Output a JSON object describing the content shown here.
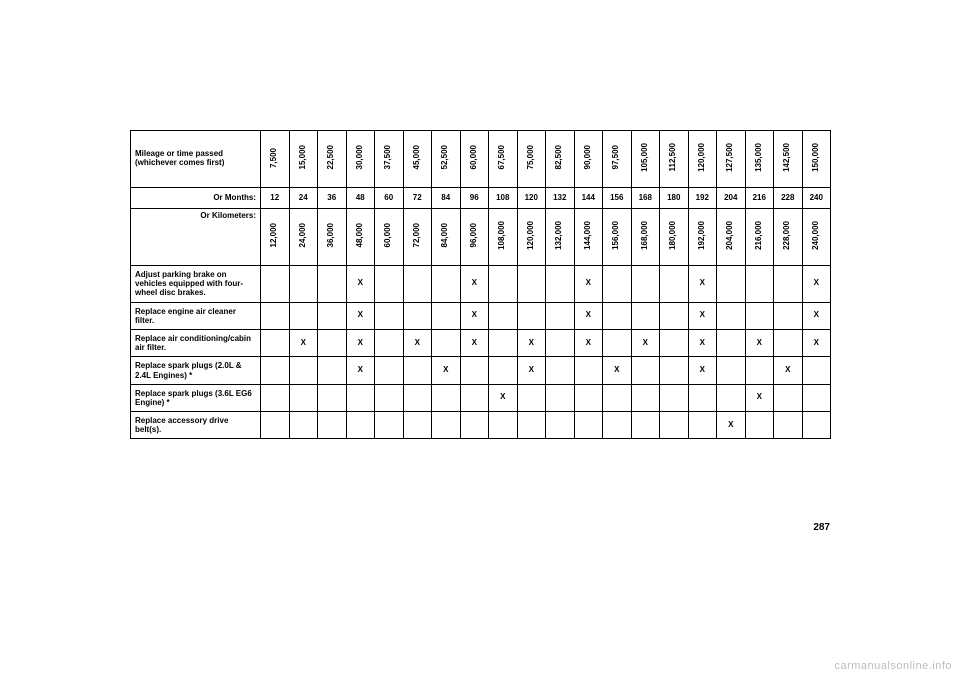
{
  "table": {
    "header_mileage_label": "Mileage or time passed (whichever comes first)",
    "header_months_label": "Or Months:",
    "header_km_label": "Or Kilometers:",
    "mileage_values": [
      "7,500",
      "15,000",
      "22,500",
      "30,000",
      "37,500",
      "45,000",
      "52,500",
      "60,000",
      "67,500",
      "75,000",
      "82,500",
      "90,000",
      "97,500",
      "105,000",
      "112,500",
      "120,000",
      "127,500",
      "135,000",
      "142,500",
      "150,000"
    ],
    "months_values": [
      "12",
      "24",
      "36",
      "48",
      "60",
      "72",
      "84",
      "96",
      "108",
      "120",
      "132",
      "144",
      "156",
      "168",
      "180",
      "192",
      "204",
      "216",
      "228",
      "240"
    ],
    "km_values": [
      "12,000",
      "24,000",
      "36,000",
      "48,000",
      "60,000",
      "72,000",
      "84,000",
      "96,000",
      "108,000",
      "120,000",
      "132,000",
      "144,000",
      "156,000",
      "168,000",
      "180,000",
      "192,000",
      "204,000",
      "216,000",
      "228,000",
      "240,000"
    ],
    "tasks": [
      {
        "label": "Adjust parking brake on vehicles equipped with four-wheel disc brakes.",
        "marks": [
          "",
          "",
          "",
          "X",
          "",
          "",
          "",
          "X",
          "",
          "",
          "",
          "X",
          "",
          "",
          "",
          "X",
          "",
          "",
          "",
          "X"
        ]
      },
      {
        "label": "Replace engine air cleaner filter.",
        "marks": [
          "",
          "",
          "",
          "X",
          "",
          "",
          "",
          "X",
          "",
          "",
          "",
          "X",
          "",
          "",
          "",
          "X",
          "",
          "",
          "",
          "X"
        ]
      },
      {
        "label": "Replace air conditioning/cabin air filter.",
        "marks": [
          "",
          "X",
          "",
          "X",
          "",
          "X",
          "",
          "X",
          "",
          "X",
          "",
          "X",
          "",
          "X",
          "",
          "X",
          "",
          "X",
          "",
          "X"
        ]
      },
      {
        "label": "Replace spark plugs (2.0L & 2.4L Engines) *",
        "marks": [
          "",
          "",
          "",
          "X",
          "",
          "",
          "X",
          "",
          "",
          "X",
          "",
          "",
          "X",
          "",
          "",
          "X",
          "",
          "",
          "X",
          ""
        ]
      },
      {
        "label": "Replace spark plugs (3.6L EG6 Engine) *",
        "marks": [
          "",
          "",
          "",
          "",
          "",
          "",
          "",
          "",
          "X",
          "",
          "",
          "",
          "",
          "",
          "",
          "",
          "",
          "X",
          "",
          ""
        ]
      },
      {
        "label": "Replace accessory drive belt(s).",
        "marks": [
          "",
          "",
          "",
          "",
          "",
          "",
          "",
          "",
          "",
          "",
          "",
          "",
          "",
          "",
          "",
          "",
          "X",
          "",
          "",
          ""
        ]
      }
    ]
  },
  "page_number": "287",
  "watermark": "carmanualsonline.info",
  "colors": {
    "border": "#000000",
    "background": "#ffffff",
    "text": "#000000",
    "watermark": "#bdbdbd"
  }
}
